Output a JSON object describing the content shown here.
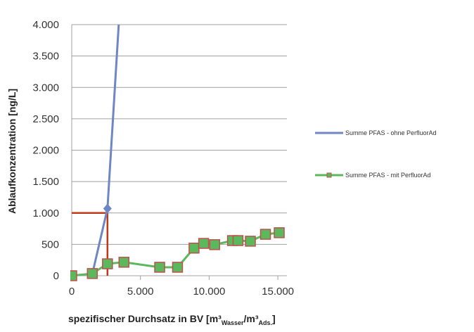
{
  "chart_data": {
    "type": "line",
    "title": "",
    "ylabel": "Ablaufkonzentration [ng/L]",
    "xlabel_parts": {
      "main": "spezifischer Durchsatz in BV [m³",
      "sub1": "Wasser",
      "mid": "/m³",
      "sub2": "Ads.",
      "end": "]"
    },
    "xlim": [
      0,
      16000
    ],
    "ylim": [
      0,
      4000
    ],
    "x_ticks": [
      0,
      5000,
      10000,
      15000
    ],
    "x_tick_labels": [
      "0",
      "5.000",
      "10.000",
      "15.000"
    ],
    "y_ticks": [
      0,
      500,
      1000,
      1500,
      2000,
      2500,
      3000,
      3500,
      4000
    ],
    "y_tick_labels": [
      "0",
      "500",
      "1.000",
      "1.500",
      "2.000",
      "2.500",
      "3.000",
      "3.500",
      "4.000"
    ],
    "grid": true,
    "legend_position": "right",
    "series": [
      {
        "name": "Summe PFAS - ohne PerfluorAd",
        "color": "#6f86c6",
        "marker": "diamond",
        "x": [
          0,
          1500,
          2600,
          3700
        ],
        "y": [
          0,
          30,
          1070,
          5000
        ]
      },
      {
        "name": "Summe PFAS - mit PerfluorAd",
        "color": "#5cb85c",
        "marker": "square",
        "marker_edge": "#c0504d",
        "x": [
          0,
          1500,
          2600,
          3800,
          6400,
          7700,
          8900,
          9600,
          10400,
          11700,
          12100,
          13000,
          14100,
          15100
        ],
        "y": [
          0,
          35,
          190,
          215,
          135,
          135,
          440,
          515,
          495,
          560,
          560,
          550,
          660,
          685
        ]
      }
    ],
    "annotation_lines": {
      "color": "#c0391b",
      "x": 2600,
      "y": 1000
    }
  }
}
